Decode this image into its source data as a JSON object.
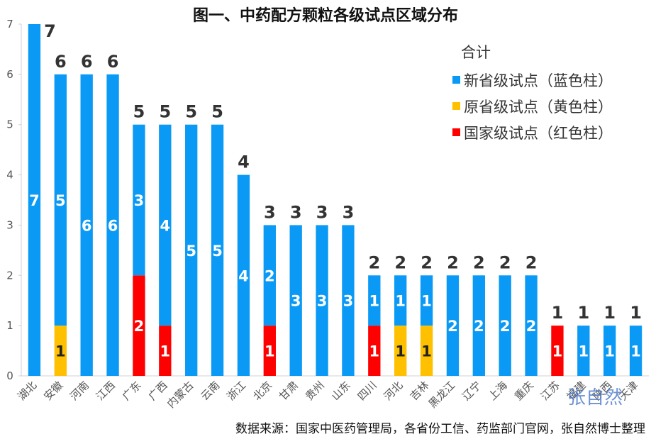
{
  "source_note": "数据来源：国家中医药管理局，各省份工信、药监部门官网，张自然博士整理",
  "watermark": "张自然",
  "chart_data": {
    "type": "bar",
    "stacked": true,
    "title": "图一、中药配方颗粒各级试点区域分布",
    "categories": [
      "湖北",
      "安徽",
      "河南",
      "江西",
      "广东",
      "广西",
      "内蒙古",
      "云南",
      "浙江",
      "北京",
      "甘肃",
      "贵州",
      "山东",
      "四川",
      "河北",
      "吉林",
      "黑龙江",
      "辽宁",
      "上海",
      "重庆",
      "江苏",
      "福建",
      "陕西",
      "天津"
    ],
    "series": [
      {
        "name": "国家级试点（红色柱）",
        "color": "#ff0000",
        "values": [
          0,
          0,
          0,
          0,
          2,
          1,
          0,
          0,
          0,
          1,
          0,
          0,
          0,
          1,
          0,
          0,
          0,
          0,
          0,
          0,
          1,
          0,
          0,
          0
        ]
      },
      {
        "name": "原省级试点（黄色柱）",
        "color": "#ffc000",
        "values": [
          0,
          1,
          0,
          0,
          0,
          0,
          0,
          0,
          0,
          0,
          0,
          0,
          0,
          0,
          1,
          1,
          0,
          0,
          0,
          0,
          0,
          0,
          0,
          0
        ]
      },
      {
        "name": "新省级试点（蓝色柱）",
        "color": "#0a9af5",
        "values": [
          7,
          5,
          6,
          6,
          3,
          4,
          5,
          5,
          4,
          2,
          3,
          3,
          3,
          1,
          1,
          1,
          2,
          2,
          2,
          2,
          0,
          1,
          1,
          1
        ]
      }
    ],
    "totals": [
      7,
      6,
      6,
      6,
      5,
      5,
      5,
      5,
      4,
      3,
      3,
      3,
      3,
      2,
      2,
      2,
      2,
      2,
      2,
      2,
      1,
      1,
      1,
      1
    ],
    "legend_title": "合计",
    "legend_order": [
      "新省级试点（蓝色柱）",
      "原省级试点（黄色柱）",
      "国家级试点（红色柱）"
    ],
    "y_ticks": [
      0,
      1,
      2,
      3,
      4,
      5,
      6,
      7
    ],
    "ylim": [
      0,
      7
    ],
    "grid": false,
    "legend_position": "top-right"
  }
}
